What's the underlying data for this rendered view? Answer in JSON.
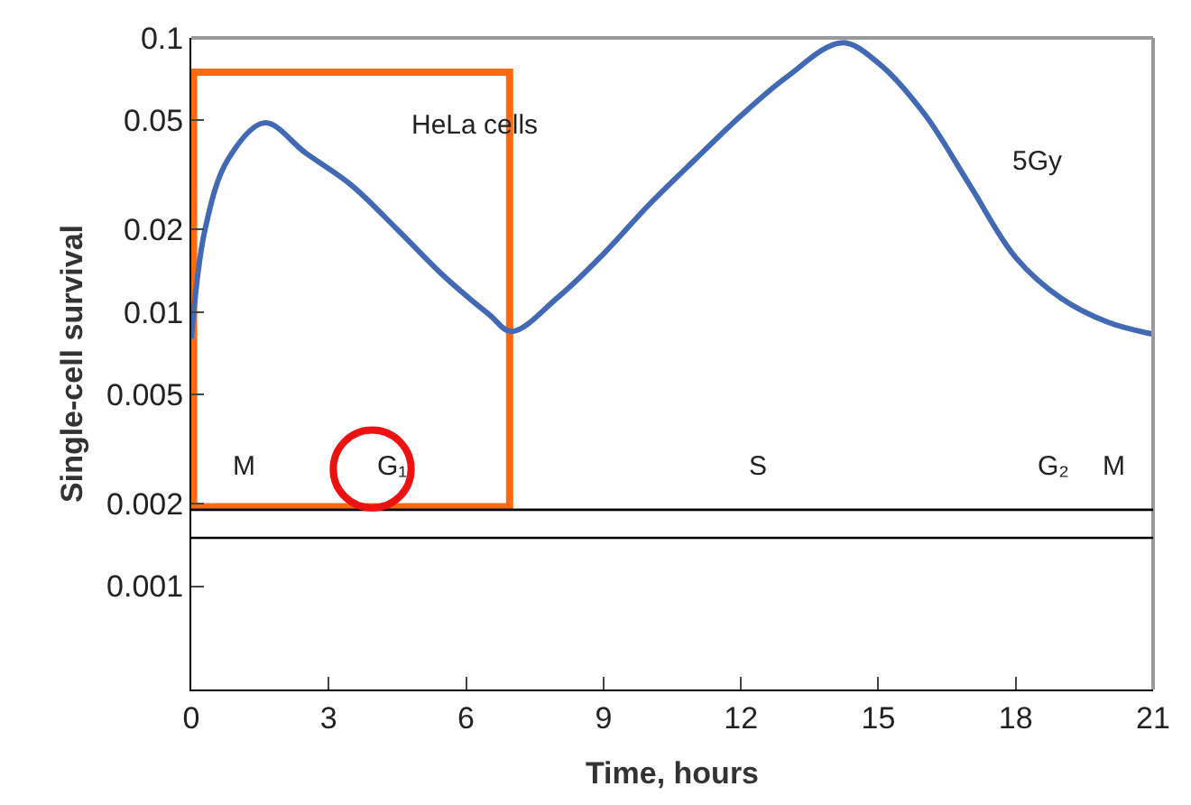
{
  "chart_data": {
    "type": "line",
    "xlabel": "Time, hours",
    "ylabel": "Single-cell survival",
    "log": "y",
    "x": [
      0,
      0.3,
      0.8,
      1.6,
      2.5,
      3.5,
      4.5,
      5.5,
      6.5,
      7,
      8,
      9,
      10,
      11,
      12,
      13,
      14.2,
      15,
      16,
      17,
      18,
      19,
      20,
      21
    ],
    "series": [
      {
        "color": "#4169b4",
        "values": [
          0.008,
          0.02,
          0.036,
          0.049,
          0.038,
          0.029,
          0.02,
          0.0136,
          0.0098,
          0.0085,
          0.0113,
          0.0163,
          0.0247,
          0.036,
          0.052,
          0.072,
          0.096,
          0.081,
          0.053,
          0.029,
          0.0158,
          0.0112,
          0.0092,
          0.0083
        ]
      }
    ],
    "xlim": [
      0,
      21
    ],
    "xticks": [
      0,
      3,
      6,
      9,
      12,
      15,
      18,
      21
    ],
    "ylim": [
      0.00042,
      0.1
    ],
    "yticks": [
      0.001,
      0.002,
      0.005,
      0.01,
      0.02,
      0.05,
      0.1
    ],
    "ref_lines": [
      {
        "axis": "y",
        "value": 0.0019,
        "color": "#000000"
      },
      {
        "axis": "y",
        "value": 0.0015,
        "color": "#000000"
      }
    ],
    "annotations": [
      "HeLa cells",
      "5Gy",
      "M",
      "G₁",
      "S",
      "G₂",
      "M"
    ],
    "marker": "none",
    "line_style": "solid"
  }
}
